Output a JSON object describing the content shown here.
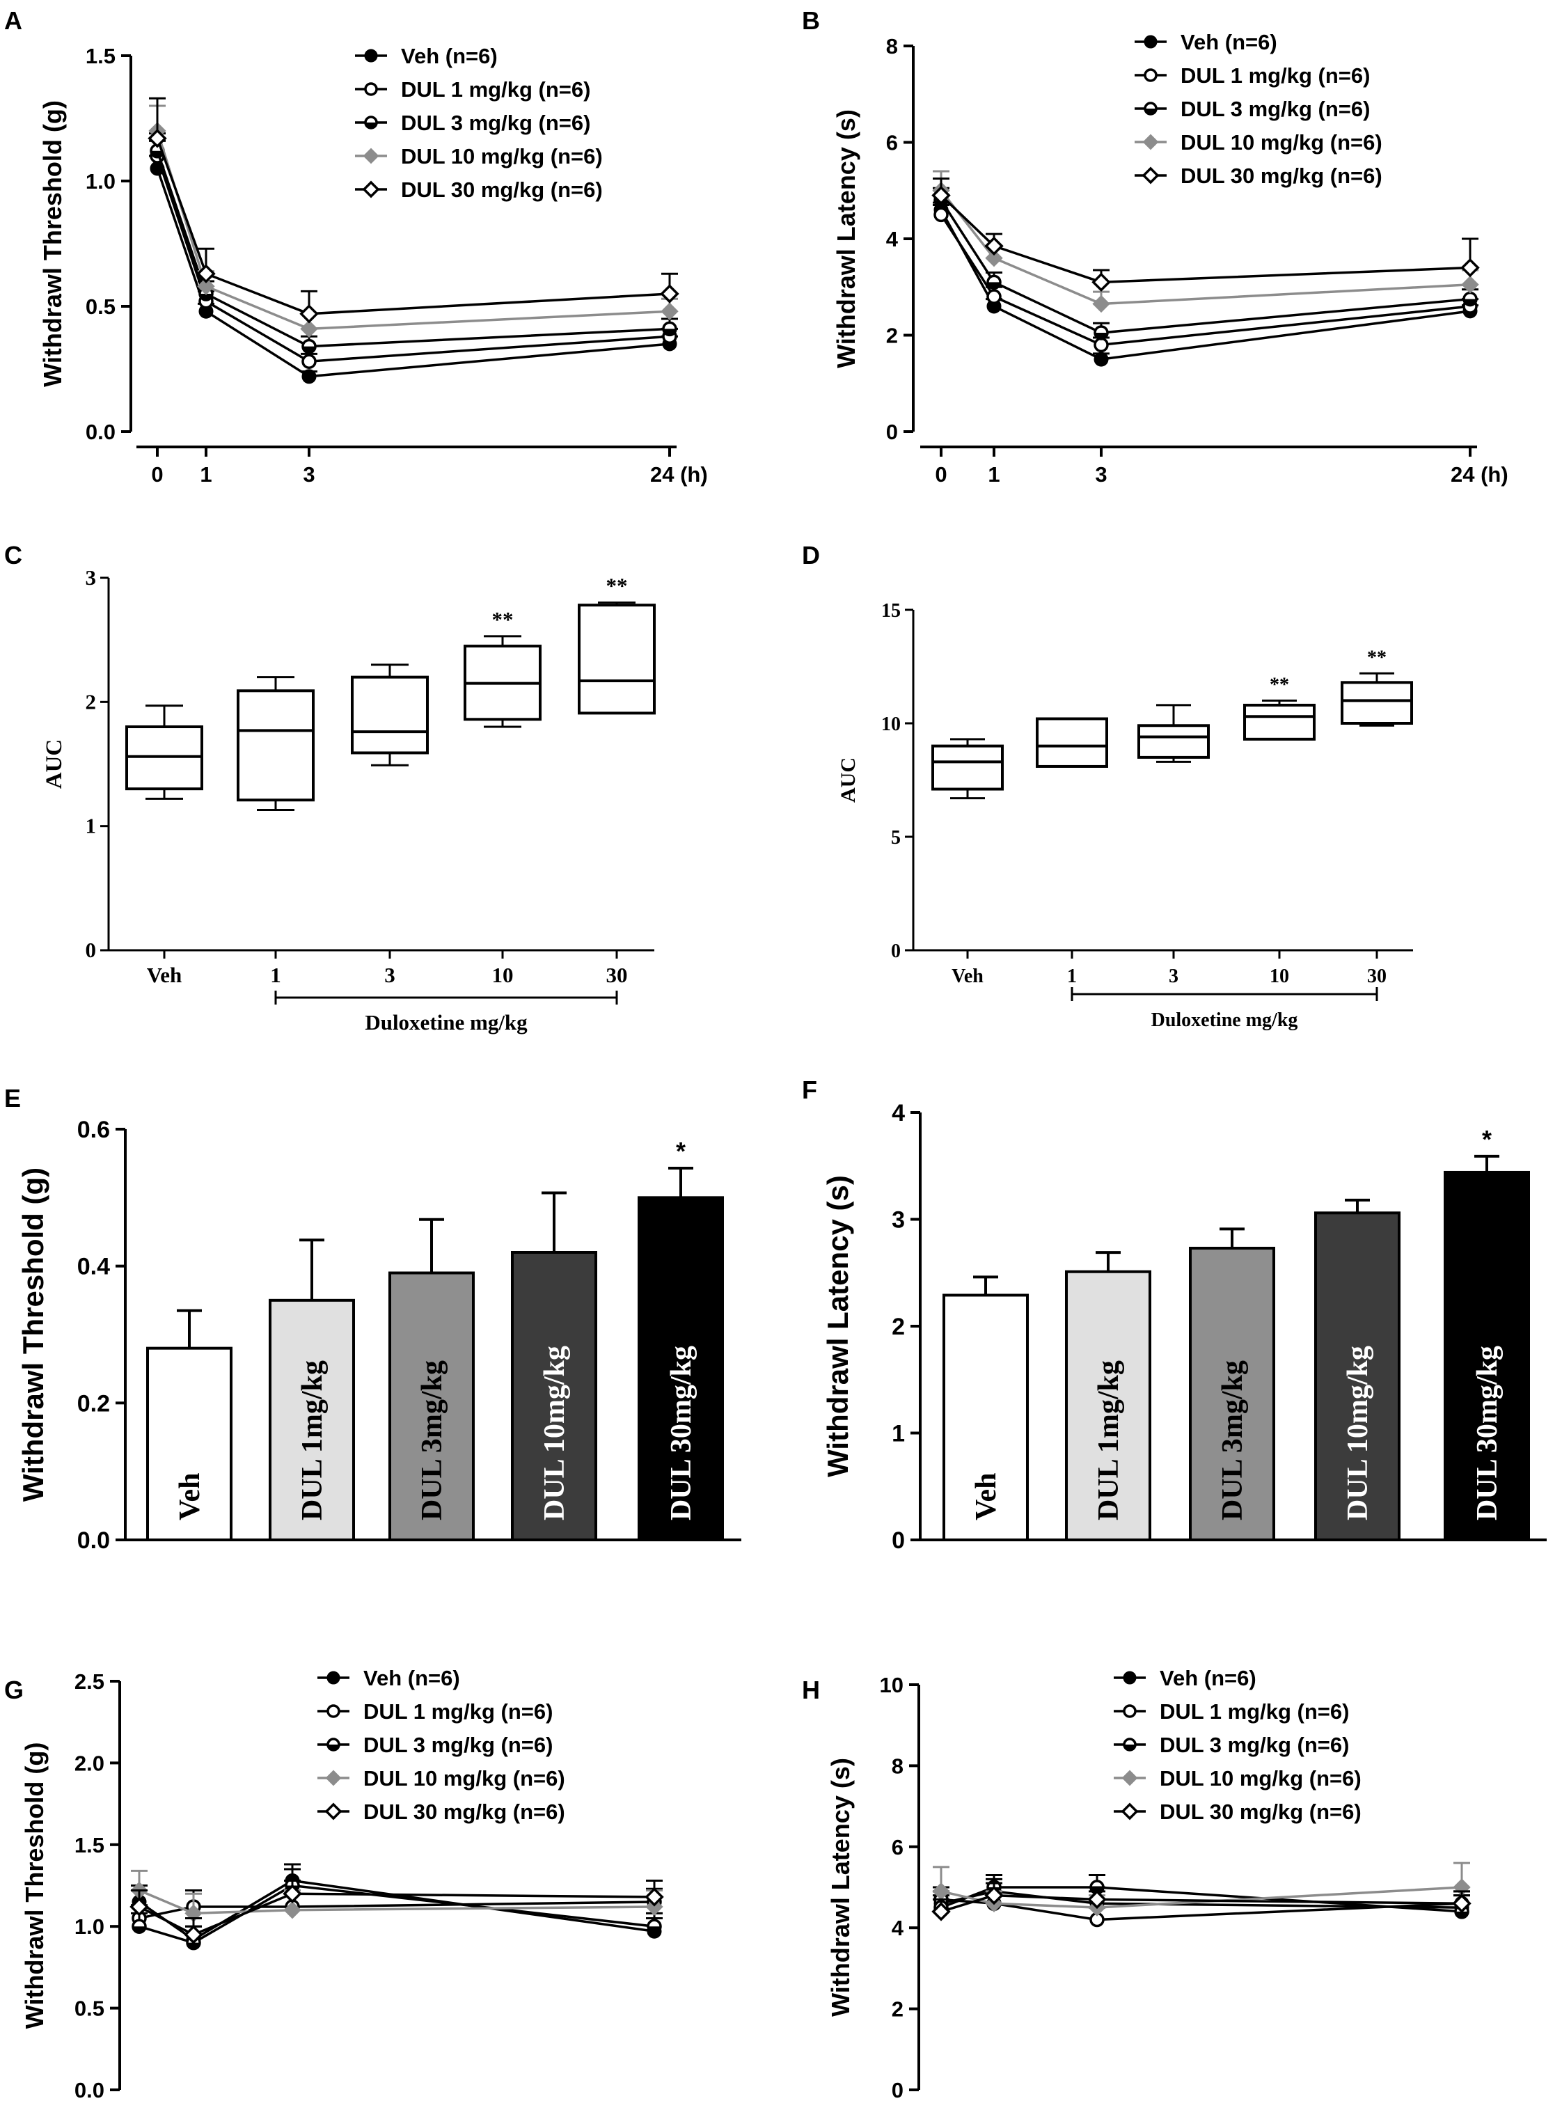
{
  "figure": {
    "colors": {
      "Veh": "#000000",
      "DUL 1 mg/kg (n=6)": "#000000",
      "DUL 3 mg/kg (n=6)": "#000000",
      "DUL 10 mg/kg (n=6)": "#8c8c8c",
      "DUL 30 mg/kg (n=6)": "#000000",
      "bar_fills": [
        "#ffffff",
        "#e0e0e0",
        "#8f8f8f",
        "#3c3c3c",
        "#000000"
      ]
    }
  },
  "chart_data": [
    {
      "panel": "A",
      "type": "line",
      "ylabel": "Withdrawl Threshold (g)",
      "x": [
        0,
        1,
        3,
        24
      ],
      "xticks": [
        "0",
        "1",
        "3",
        "24 (h)"
      ],
      "ylim": [
        0,
        1.5
      ],
      "yticks": [
        "0.0",
        "0.5",
        "1.0",
        "1.5"
      ],
      "series": [
        {
          "name": "Veh (n=6)",
          "marker": "filled-circle",
          "values": [
            1.05,
            0.48,
            0.22,
            0.35
          ],
          "err": [
            0.05,
            0.03,
            0.02,
            0.03
          ]
        },
        {
          "name": "DUL 1 mg/kg (n=6)",
          "marker": "open-circle",
          "values": [
            1.1,
            0.52,
            0.28,
            0.38
          ],
          "err": [
            0.06,
            0.04,
            0.03,
            0.03
          ]
        },
        {
          "name": "DUL 3 mg/kg (n=6)",
          "marker": "half-circle",
          "values": [
            1.12,
            0.55,
            0.34,
            0.41
          ],
          "err": [
            0.07,
            0.05,
            0.04,
            0.04
          ]
        },
        {
          "name": "DUL 10 mg/kg (n=6)",
          "marker": "diamond-gray",
          "values": [
            1.2,
            0.58,
            0.41,
            0.48
          ],
          "err": [
            0.1,
            0.06,
            0.06,
            0.05
          ]
        },
        {
          "name": "DUL 30 mg/kg (n=6)",
          "marker": "open-diamond",
          "values": [
            1.17,
            0.63,
            0.47,
            0.55
          ],
          "err": [
            0.16,
            0.1,
            0.09,
            0.08
          ]
        }
      ]
    },
    {
      "panel": "B",
      "type": "line",
      "ylabel": "Withdrawl Latency (s)",
      "x": [
        0,
        1,
        3,
        24
      ],
      "xticks": [
        "0",
        "1",
        "3",
        "24 (h)"
      ],
      "ylim": [
        0,
        8
      ],
      "yticks": [
        "0",
        "2",
        "4",
        "6",
        "8"
      ],
      "series": [
        {
          "name": "Veh (n=6)",
          "marker": "filled-circle",
          "values": [
            4.6,
            2.6,
            1.5,
            2.5
          ],
          "err": [
            0.15,
            0.15,
            0.12,
            0.12
          ]
        },
        {
          "name": "DUL 1 mg/kg (n=6)",
          "marker": "open-circle",
          "values": [
            4.5,
            2.8,
            1.8,
            2.6
          ],
          "err": [
            0.2,
            0.2,
            0.15,
            0.15
          ]
        },
        {
          "name": "DUL 3 mg/kg (n=6)",
          "marker": "half-circle",
          "values": [
            4.8,
            3.1,
            2.05,
            2.75
          ],
          "err": [
            0.25,
            0.2,
            0.2,
            0.2
          ]
        },
        {
          "name": "DUL 10 mg/kg (n=6)",
          "marker": "diamond-gray",
          "values": [
            5.0,
            3.6,
            2.65,
            3.05
          ],
          "err": [
            0.4,
            0.25,
            0.25,
            0.3
          ]
        },
        {
          "name": "DUL 30 mg/kg (n=6)",
          "marker": "open-diamond",
          "values": [
            4.9,
            3.85,
            3.1,
            3.4
          ],
          "err": [
            0.35,
            0.25,
            0.25,
            0.6
          ]
        }
      ]
    },
    {
      "panel": "C",
      "type": "box",
      "ylabel": "AUC",
      "xlabel": "Duloxetine mg/kg",
      "categories": [
        "Veh",
        "1",
        "3",
        "10",
        "30"
      ],
      "ylim": [
        0,
        3
      ],
      "yticks": [
        "0",
        "1",
        "2",
        "3"
      ],
      "boxes": [
        {
          "min": 1.22,
          "q1": 1.3,
          "median": 1.56,
          "q3": 1.8,
          "max": 1.97,
          "sig": ""
        },
        {
          "min": 1.13,
          "q1": 1.21,
          "median": 1.77,
          "q3": 2.09,
          "max": 2.2,
          "sig": ""
        },
        {
          "min": 1.49,
          "q1": 1.59,
          "median": 1.76,
          "q3": 2.2,
          "max": 2.3,
          "sig": ""
        },
        {
          "min": 1.8,
          "q1": 1.86,
          "median": 2.15,
          "q3": 2.45,
          "max": 2.53,
          "sig": "**"
        },
        {
          "min": 1.91,
          "q1": 1.91,
          "median": 2.17,
          "q3": 2.78,
          "max": 2.8,
          "sig": "**"
        }
      ]
    },
    {
      "panel": "D",
      "type": "box",
      "ylabel": "AUC",
      "xlabel": "Duloxetine mg/kg",
      "categories": [
        "Veh",
        "1",
        "3",
        "10",
        "30"
      ],
      "ylim": [
        0,
        15
      ],
      "yticks": [
        "0",
        "5",
        "10",
        "15"
      ],
      "boxes": [
        {
          "min": 6.7,
          "q1": 7.1,
          "median": 8.3,
          "q3": 9.0,
          "max": 9.3,
          "sig": ""
        },
        {
          "min": 8.1,
          "q1": 8.1,
          "median": 9.0,
          "q3": 10.2,
          "max": 10.2,
          "sig": ""
        },
        {
          "min": 8.3,
          "q1": 8.5,
          "median": 9.4,
          "q3": 9.9,
          "max": 10.8,
          "sig": ""
        },
        {
          "min": 9.3,
          "q1": 9.3,
          "median": 10.3,
          "q3": 10.8,
          "max": 11.0,
          "sig": "**"
        },
        {
          "min": 9.9,
          "q1": 10.0,
          "median": 11.0,
          "q3": 11.8,
          "max": 12.2,
          "sig": "**"
        }
      ]
    },
    {
      "panel": "E",
      "type": "bar",
      "ylabel": "Withdrawl Threshold (g)",
      "categories": [
        "Veh",
        "DUL 1mg/kg",
        "DUL 3mg/kg",
        "DUL 10mg/kg",
        "DUL 30mg/kg"
      ],
      "values": [
        0.28,
        0.35,
        0.39,
        0.42,
        0.5
      ],
      "err": [
        0.055,
        0.088,
        0.078,
        0.087,
        0.043
      ],
      "sig": [
        "",
        "",
        "",
        "",
        "*"
      ],
      "ylim": [
        0,
        0.6
      ],
      "yticks": [
        "0.0",
        "0.2",
        "0.4",
        "0.6"
      ]
    },
    {
      "panel": "F",
      "type": "bar",
      "ylabel": "Withdrawl Latency (s)",
      "categories": [
        "Veh",
        "DUL 1mg/kg",
        "DUL 3mg/kg",
        "DUL 10mg/kg",
        "DUL 30mg/kg"
      ],
      "values": [
        2.29,
        2.51,
        2.73,
        3.06,
        3.44
      ],
      "err": [
        0.17,
        0.18,
        0.18,
        0.12,
        0.15
      ],
      "sig": [
        "",
        "",
        "",
        "",
        "*"
      ],
      "ylim": [
        0,
        4
      ],
      "yticks": [
        "0",
        "1",
        "2",
        "3",
        "4"
      ]
    },
    {
      "panel": "G",
      "type": "line",
      "ylabel": "Withdrawl Threshold (g)",
      "x": [
        0,
        1,
        3,
        24
      ],
      "xticks": [
        "0",
        "1",
        "3",
        "24 (h)"
      ],
      "ylim": [
        0,
        2.5
      ],
      "yticks": [
        "0.0",
        "0.5",
        "1.0",
        "1.5",
        "2.0",
        "2.5"
      ],
      "series": [
        {
          "name": "Veh (n=6)",
          "marker": "filled-circle",
          "values": [
            1.15,
            0.92,
            1.28,
            0.97
          ],
          "err": [
            0.1,
            0.08,
            0.1,
            0.08
          ]
        },
        {
          "name": "DUL 1 mg/kg (n=6)",
          "marker": "open-circle",
          "values": [
            1.05,
            1.12,
            1.12,
            1.15
          ],
          "err": [
            0.08,
            0.1,
            0.08,
            0.08
          ]
        },
        {
          "name": "DUL 3 mg/kg (n=6)",
          "marker": "half-circle",
          "values": [
            1.0,
            0.9,
            1.25,
            1.0
          ],
          "err": [
            0.08,
            0.1,
            0.1,
            0.08
          ]
        },
        {
          "name": "DUL 10 mg/kg (n=6)",
          "marker": "diamond-gray",
          "values": [
            1.22,
            1.08,
            1.1,
            1.12
          ],
          "err": [
            0.12,
            0.12,
            0.12,
            0.1
          ]
        },
        {
          "name": "DUL 30 mg/kg (n=6)",
          "marker": "open-diamond",
          "values": [
            1.12,
            0.95,
            1.2,
            1.18
          ],
          "err": [
            0.1,
            0.1,
            0.08,
            0.1
          ]
        }
      ]
    },
    {
      "panel": "H",
      "type": "line",
      "ylabel": "Withdrawl Latency (s)",
      "x": [
        0,
        1,
        3,
        24
      ],
      "xticks": [
        "0",
        "1",
        "3",
        "24 (h)"
      ],
      "ylim": [
        0,
        10
      ],
      "yticks": [
        "0",
        "2",
        "4",
        "6",
        "8",
        "10"
      ],
      "series": [
        {
          "name": "Veh (n=6)",
          "marker": "filled-circle",
          "values": [
            4.6,
            4.9,
            4.6,
            4.5
          ],
          "err": [
            0.3,
            0.3,
            0.3,
            0.3
          ]
        },
        {
          "name": "DUL 1 mg/kg (n=6)",
          "marker": "open-circle",
          "values": [
            4.7,
            4.6,
            4.2,
            4.6
          ],
          "err": [
            0.3,
            0.3,
            0.3,
            0.3
          ]
        },
        {
          "name": "DUL 3 mg/kg (n=6)",
          "marker": "half-circle",
          "values": [
            4.5,
            5.0,
            5.0,
            4.4
          ],
          "err": [
            0.3,
            0.3,
            0.3,
            0.4
          ]
        },
        {
          "name": "DUL 10 mg/kg (n=6)",
          "marker": "diamond-gray",
          "values": [
            4.9,
            4.6,
            4.5,
            5.0
          ],
          "err": [
            0.6,
            0.3,
            0.3,
            0.6
          ]
        },
        {
          "name": "DUL 30 mg/kg (n=6)",
          "marker": "open-diamond",
          "values": [
            4.4,
            4.8,
            4.7,
            4.6
          ],
          "err": [
            0.3,
            0.3,
            0.3,
            0.3
          ]
        }
      ]
    }
  ]
}
